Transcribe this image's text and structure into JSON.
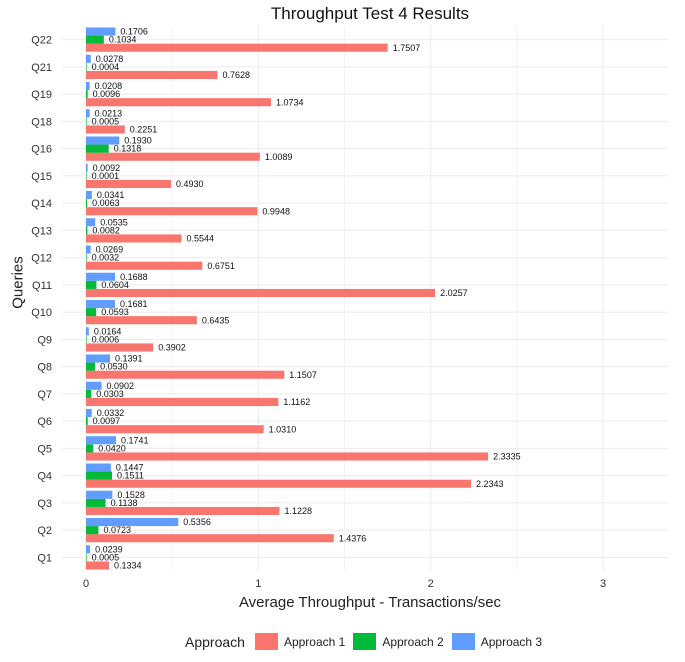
{
  "chart_data": {
    "type": "bar",
    "orientation": "horizontal",
    "title": "Throughput Test 4 Results",
    "xlabel": "Average Throughput - Transactions/sec",
    "ylabel": "Queries",
    "xlim": [
      -0.1,
      3.2
    ],
    "xticks": [
      "0",
      "1",
      "2",
      "3"
    ],
    "grid": true,
    "legend_position": "bottom",
    "legend_title": "Approach",
    "categories": [
      "Q1",
      "Q2",
      "Q3",
      "Q4",
      "Q5",
      "Q6",
      "Q7",
      "Q8",
      "Q9",
      "Q10",
      "Q11",
      "Q12",
      "Q13",
      "Q14",
      "Q15",
      "Q16",
      "Q18",
      "Q19",
      "Q21",
      "Q22"
    ],
    "series": [
      {
        "name": "Approach 1",
        "color": "#F8766D",
        "values": [
          0.1334,
          1.4376,
          1.1228,
          2.2343,
          2.3335,
          1.031,
          1.1162,
          1.1507,
          0.3902,
          0.6435,
          2.0257,
          0.6751,
          0.5544,
          0.9948,
          0.493,
          1.0089,
          0.2251,
          1.0734,
          0.7628,
          1.7507
        ],
        "labels": [
          "0.1334",
          "1.4376",
          "1.1228",
          "2.2343",
          "2.3335",
          "1.0310",
          "1.1162",
          "1.1507",
          "0.3902",
          "0.6435",
          "2.0257",
          "0.6751",
          "0.5544",
          "0.9948",
          "0.4930",
          "1.0089",
          "0.2251",
          "1.0734",
          "0.7628",
          "1.7507"
        ]
      },
      {
        "name": "Approach 2",
        "color": "#00BA38",
        "values": [
          0.0005,
          0.0723,
          0.1138,
          0.1511,
          0.042,
          0.0097,
          0.0303,
          0.053,
          0.0006,
          0.0593,
          0.0604,
          0.0032,
          0.0082,
          0.0063,
          0.0001,
          0.1318,
          0.0005,
          0.0096,
          0.0004,
          0.1034
        ],
        "labels": [
          "0.0005",
          "0.0723",
          "0.1138",
          "0.1511",
          "0.0420",
          "0.0097",
          "0.0303",
          "0.0530",
          "0.0006",
          "0.0593",
          "0.0604",
          "0.0032",
          "0.0082",
          "0.0063",
          "0.0001",
          "0.1318",
          "0.0005",
          "0.0096",
          "0.0004",
          "0.1034"
        ]
      },
      {
        "name": "Approach 3",
        "color": "#619CFF",
        "values": [
          0.0239,
          0.5356,
          0.1528,
          0.1447,
          0.1741,
          0.0332,
          0.0902,
          0.1391,
          0.0164,
          0.1681,
          0.1688,
          0.0269,
          0.0535,
          0.0341,
          0.0092,
          0.193,
          0.0213,
          0.0208,
          0.0278,
          0.1706
        ],
        "labels": [
          "0.0239",
          "0.5356",
          "0.1528",
          "0.1447",
          "0.1741",
          "0.0332",
          "0.0902",
          "0.1391",
          "0.0164",
          "0.1681",
          "0.1688",
          "0.0269",
          "0.0535",
          "0.0341",
          "0.0092",
          "0.1930",
          "0.0213",
          "0.0208",
          "0.0278",
          "0.1706"
        ]
      }
    ]
  }
}
